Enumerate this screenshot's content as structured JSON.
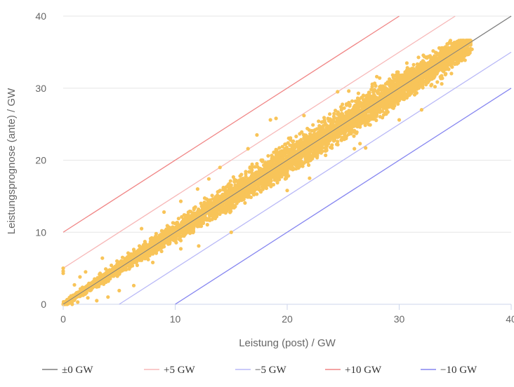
{
  "chart_data": {
    "type": "scatter",
    "title": "",
    "xlabel": "Leistung (post) / GW",
    "ylabel": "Leistungsprognose (ante) / GW",
    "xlim": [
      0,
      40
    ],
    "ylim": [
      0,
      40
    ],
    "xticks": [
      "0",
      "10",
      "20",
      "30",
      "40"
    ],
    "yticks": [
      "0",
      "10",
      "20",
      "30",
      "40"
    ],
    "grid": "horizontal",
    "legend_position": "bottom",
    "scatter_color": "#F8C459",
    "reference_lines": [
      {
        "name": "±0 GW",
        "offset": 0,
        "color": "#7f7f7f"
      },
      {
        "name": "+5 GW",
        "offset": 5,
        "color": "#f7b8b8"
      },
      {
        "name": "−5 GW",
        "offset": -5,
        "color": "#b8b8f7"
      },
      {
        "name": "+10 GW",
        "offset": 10,
        "color": "#f08585"
      },
      {
        "name": "−10 GW",
        "offset": -10,
        "color": "#8585f0"
      }
    ],
    "scatter_points": [
      [
        0.2,
        0.1
      ],
      [
        0.4,
        0.6
      ],
      [
        0.6,
        0.3
      ],
      [
        0.8,
        1.1
      ],
      [
        1.0,
        0.7
      ],
      [
        1.2,
        1.6
      ],
      [
        1.5,
        1.1
      ],
      [
        1.8,
        2.3
      ],
      [
        2.0,
        1.5
      ],
      [
        2.3,
        2.9
      ],
      [
        2.5,
        2.0
      ],
      [
        2.8,
        3.5
      ],
      [
        3.0,
        2.4
      ],
      [
        3.3,
        4.3
      ],
      [
        3.5,
        3.0
      ],
      [
        3.8,
        4.9
      ],
      [
        4.0,
        3.4
      ],
      [
        4.3,
        5.4
      ],
      [
        4.5,
        3.9
      ],
      [
        4.8,
        6.0
      ],
      [
        5.0,
        4.4
      ],
      [
        5.3,
        6.5
      ],
      [
        5.5,
        4.8
      ],
      [
        5.8,
        7.1
      ],
      [
        6.0,
        5.2
      ],
      [
        6.3,
        7.6
      ],
      [
        6.5,
        5.8
      ],
      [
        6.8,
        8.1
      ],
      [
        7.0,
        6.1
      ],
      [
        7.3,
        8.7
      ],
      [
        7.5,
        6.7
      ],
      [
        7.8,
        9.1
      ],
      [
        8.0,
        7.0
      ],
      [
        8.3,
        9.8
      ],
      [
        8.5,
        7.6
      ],
      [
        8.8,
        10.2
      ],
      [
        9.0,
        8.0
      ],
      [
        9.3,
        10.9
      ],
      [
        9.5,
        8.4
      ],
      [
        9.8,
        11.3
      ],
      [
        10.0,
        9.0
      ],
      [
        10.3,
        11.9
      ],
      [
        10.5,
        9.4
      ],
      [
        10.8,
        12.4
      ],
      [
        11.0,
        9.9
      ],
      [
        11.3,
        12.9
      ],
      [
        11.5,
        10.3
      ],
      [
        11.8,
        13.5
      ],
      [
        12.0,
        10.8
      ],
      [
        12.3,
        14.0
      ],
      [
        12.5,
        11.3
      ],
      [
        12.8,
        14.6
      ],
      [
        13.0,
        11.7
      ],
      [
        13.3,
        15.1
      ],
      [
        13.5,
        12.2
      ],
      [
        13.8,
        15.6
      ],
      [
        14.0,
        12.6
      ],
      [
        14.3,
        16.2
      ],
      [
        14.5,
        13.1
      ],
      [
        14.8,
        16.7
      ],
      [
        15.0,
        13.6
      ],
      [
        15.3,
        17.3
      ],
      [
        15.5,
        14.0
      ],
      [
        15.8,
        17.8
      ],
      [
        16.0,
        14.5
      ],
      [
        16.3,
        18.4
      ],
      [
        16.5,
        14.9
      ],
      [
        16.8,
        18.9
      ],
      [
        17.0,
        15.4
      ],
      [
        17.3,
        19.5
      ],
      [
        17.5,
        15.9
      ],
      [
        17.8,
        20.0
      ],
      [
        18.0,
        16.3
      ],
      [
        18.3,
        20.6
      ],
      [
        18.5,
        16.8
      ],
      [
        18.8,
        21.1
      ],
      [
        19.0,
        17.3
      ],
      [
        19.3,
        21.7
      ],
      [
        19.5,
        17.7
      ],
      [
        19.8,
        22.2
      ],
      [
        20.0,
        18.2
      ],
      [
        20.3,
        22.8
      ],
      [
        20.5,
        18.7
      ],
      [
        20.8,
        23.3
      ],
      [
        21.0,
        19.2
      ],
      [
        21.3,
        23.9
      ],
      [
        21.5,
        19.6
      ],
      [
        21.8,
        24.4
      ],
      [
        22.0,
        20.1
      ],
      [
        22.3,
        24.9
      ],
      [
        22.5,
        20.6
      ],
      [
        22.8,
        25.4
      ],
      [
        23.0,
        21.1
      ],
      [
        23.3,
        25.9
      ],
      [
        23.5,
        21.6
      ],
      [
        23.8,
        26.4
      ],
      [
        24.0,
        22.1
      ],
      [
        24.3,
        26.9
      ],
      [
        24.5,
        22.6
      ],
      [
        24.8,
        27.4
      ],
      [
        25.0,
        23.1
      ],
      [
        25.3,
        27.8
      ],
      [
        25.5,
        23.6
      ],
      [
        25.8,
        28.2
      ],
      [
        26.0,
        24.1
      ],
      [
        26.3,
        28.6
      ],
      [
        26.5,
        24.6
      ],
      [
        26.8,
        29.0
      ],
      [
        27.0,
        25.2
      ],
      [
        27.3,
        29.4
      ],
      [
        27.5,
        25.7
      ],
      [
        27.8,
        29.8
      ],
      [
        28.0,
        26.3
      ],
      [
        28.3,
        30.2
      ],
      [
        28.5,
        26.8
      ],
      [
        28.8,
        30.6
      ],
      [
        29.0,
        27.4
      ],
      [
        29.3,
        31.0
      ],
      [
        29.5,
        27.9
      ],
      [
        29.8,
        31.4
      ],
      [
        30.0,
        28.5
      ],
      [
        30.3,
        31.8
      ],
      [
        30.5,
        29.0
      ],
      [
        30.8,
        32.2
      ],
      [
        31.0,
        29.6
      ],
      [
        31.3,
        32.6
      ],
      [
        31.5,
        30.1
      ],
      [
        31.8,
        33.0
      ],
      [
        32.0,
        30.7
      ],
      [
        32.3,
        33.4
      ],
      [
        32.5,
        31.2
      ],
      [
        32.8,
        33.8
      ],
      [
        33.0,
        31.8
      ],
      [
        33.3,
        34.2
      ],
      [
        33.5,
        32.4
      ],
      [
        33.8,
        34.6
      ],
      [
        34.0,
        33.0
      ],
      [
        34.3,
        35.0
      ],
      [
        34.5,
        33.6
      ],
      [
        34.8,
        35.3
      ],
      [
        35.0,
        34.2
      ],
      [
        35.3,
        35.7
      ],
      [
        35.5,
        34.7
      ],
      [
        35.8,
        36.0
      ],
      [
        36.0,
        35.2
      ],
      [
        36.3,
        36.4
      ],
      [
        36.5,
        35.4
      ],
      [
        36.1,
        35.0
      ],
      [
        0.0,
        4.3
      ],
      [
        0.0,
        4.6
      ],
      [
        0.0,
        5.0
      ],
      [
        12.1,
        8.1
      ],
      [
        14.0,
        19.0
      ],
      [
        17.3,
        23.5
      ],
      [
        19.0,
        25.8
      ],
      [
        18.5,
        25.6
      ],
      [
        16.5,
        21.6
      ],
      [
        24.5,
        29.5
      ],
      [
        25.5,
        29.6
      ],
      [
        26.0,
        21.6
      ],
      [
        27.0,
        21.7
      ],
      [
        26.5,
        22.3
      ],
      [
        30.0,
        25.6
      ],
      [
        33.2,
        30.2
      ],
      [
        33.8,
        30.6
      ],
      [
        32.0,
        27.0
      ],
      [
        35.0,
        36.0
      ],
      [
        10.5,
        7.7
      ],
      [
        8.0,
        5.8
      ],
      [
        6.3,
        2.6
      ],
      [
        4.0,
        1.0
      ],
      [
        5.0,
        1.9
      ],
      [
        3.0,
        0.5
      ],
      [
        10.5,
        14.3
      ],
      [
        12.0,
        16.0
      ],
      [
        7.0,
        10.5
      ],
      [
        22.0,
        17.5
      ],
      [
        20.0,
        15.8
      ],
      [
        15.0,
        10.0
      ],
      [
        9.0,
        12.8
      ],
      [
        13.0,
        17.4
      ],
      [
        21.5,
        26.2
      ],
      [
        28.0,
        31.6
      ],
      [
        1.0,
        2.7
      ],
      [
        2.0,
        4.5
      ],
      [
        1.5,
        3.8
      ],
      [
        3.5,
        6.4
      ],
      [
        0.8,
        0.0
      ],
      [
        1.3,
        0.3
      ],
      [
        2.2,
        0.9
      ]
    ]
  }
}
